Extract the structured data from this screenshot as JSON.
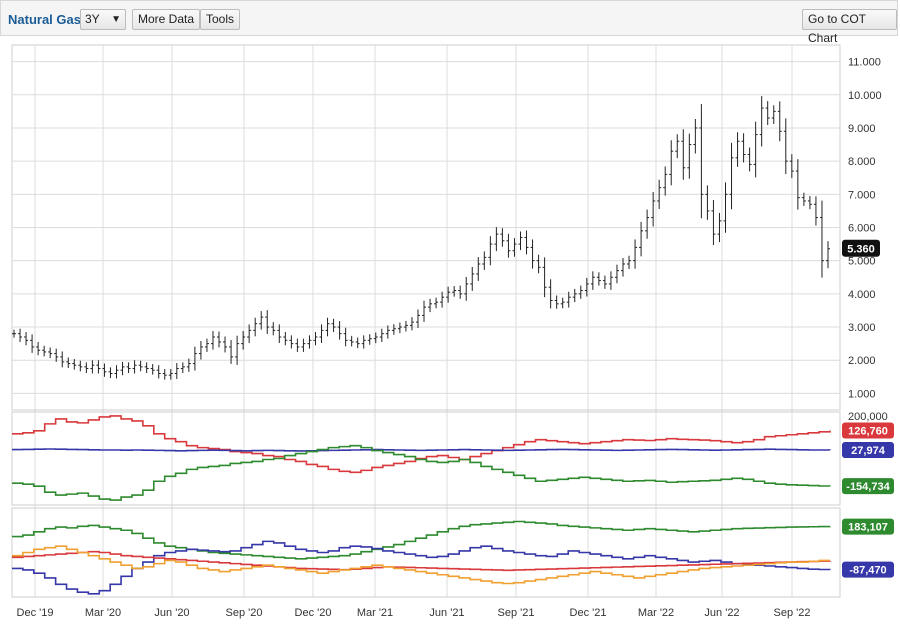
{
  "toolbar": {
    "title": "Natural Gas",
    "range_select": "3Y",
    "more_data": "More Data",
    "tools": "Tools",
    "cot_chart": "Go to COT Chart"
  },
  "colors": {
    "price": "#222222",
    "red": "#d9393c",
    "blue": "#3637a8",
    "green": "#2e8a2e",
    "orange": "#f0a030",
    "grid": "#dcdcdc"
  },
  "chart_data": [
    {
      "type": "ohlc",
      "ylim": [
        0.5,
        11.5
      ],
      "yticks": [
        "1.000",
        "2.000",
        "3.000",
        "4.000",
        "5.000",
        "6.000",
        "7.000",
        "8.000",
        "9.000",
        "10.000",
        "11.000"
      ],
      "last_value_label": "5.360",
      "x_tick_labels": [
        "Dec '19",
        "Mar '20",
        "Jun '20",
        "Sep '20",
        "Dec '20",
        "Mar '21",
        "Jun '21",
        "Sep '21",
        "Dec '21",
        "Mar '22",
        "Jun '22",
        "Sep '22"
      ],
      "weekly_closes": [
        2.8,
        2.7,
        2.6,
        2.4,
        2.3,
        2.25,
        2.2,
        2.1,
        1.95,
        1.9,
        1.85,
        1.8,
        1.75,
        1.85,
        1.75,
        1.65,
        1.6,
        1.7,
        1.8,
        1.75,
        1.85,
        1.8,
        1.75,
        1.7,
        1.6,
        1.55,
        1.6,
        1.75,
        1.8,
        1.9,
        2.2,
        2.4,
        2.5,
        2.7,
        2.55,
        2.4,
        2.1,
        2.5,
        2.7,
        2.9,
        3.1,
        3.3,
        3.0,
        2.9,
        2.7,
        2.6,
        2.5,
        2.4,
        2.5,
        2.6,
        2.7,
        2.9,
        3.1,
        3.0,
        2.8,
        2.6,
        2.55,
        2.5,
        2.6,
        2.65,
        2.7,
        2.8,
        2.9,
        2.95,
        3.0,
        3.05,
        3.15,
        3.35,
        3.6,
        3.7,
        3.75,
        3.9,
        4.05,
        4.1,
        4.0,
        4.3,
        4.6,
        4.9,
        5.1,
        5.5,
        5.8,
        5.6,
        5.3,
        5.5,
        5.7,
        5.4,
        5.0,
        4.8,
        4.2,
        3.8,
        3.7,
        3.75,
        3.9,
        4.0,
        4.1,
        4.3,
        4.5,
        4.4,
        4.3,
        4.5,
        4.7,
        4.9,
        5.0,
        5.4,
        5.9,
        6.3,
        6.8,
        7.2,
        7.6,
        8.3,
        8.6,
        7.8,
        8.5,
        9.0,
        7.0,
        6.5,
        5.8,
        6.2,
        7.0,
        8.1,
        8.6,
        8.2,
        7.9,
        8.8,
        9.6,
        9.3,
        9.5,
        8.9,
        8.0,
        7.7,
        6.9,
        6.8,
        6.7,
        6.3,
        5.0,
        5.36
      ],
      "series_last_values": []
    },
    {
      "type": "line",
      "ylim": [
        -250000,
        220000
      ],
      "yticks": [
        "200,000"
      ],
      "last_value_labels": [
        "126,760",
        "27,974",
        "-154,734"
      ],
      "series": [
        {
          "color": "red",
          "values": [
            110000,
            115000,
            125000,
            160000,
            185000,
            170000,
            165000,
            180000,
            195000,
            200000,
            185000,
            175000,
            150000,
            110000,
            85000,
            70000,
            50000,
            40000,
            35000,
            30000,
            20000,
            15000,
            10000,
            0,
            -5000,
            -20000,
            -30000,
            -45000,
            -55000,
            -70000,
            -80000,
            -85000,
            -75000,
            -60000,
            -50000,
            -40000,
            -30000,
            -15000,
            -5000,
            0,
            -10000,
            -20000,
            -5000,
            10000,
            25000,
            40000,
            55000,
            70000,
            80000,
            75000,
            70000,
            65000,
            60000,
            65000,
            70000,
            75000,
            80000,
            78000,
            76000,
            80000,
            85000,
            82000,
            80000,
            78000,
            75000,
            70000,
            65000,
            70000,
            80000,
            95000,
            100000,
            105000,
            110000,
            115000,
            120000,
            126760
          ]
        },
        {
          "color": "blue",
          "values": [
            30000,
            31000,
            32000,
            33000,
            32000,
            31000,
            30000,
            29000,
            28000,
            28000,
            27000,
            28000,
            27000,
            26000,
            25000,
            24000,
            25000,
            26000,
            27000,
            26000,
            25000,
            24000,
            25000,
            26000,
            25000,
            24000,
            23000,
            24000,
            25000,
            26000,
            27000,
            28000,
            29000,
            30000,
            29000,
            28000,
            27000,
            26000,
            27000,
            28000,
            29000,
            30000,
            29000,
            28000,
            27000,
            26000,
            27000,
            28000,
            29000,
            30000,
            31000,
            30000,
            29000,
            28000,
            27000,
            26000,
            27000,
            28000,
            29000,
            30000,
            31000,
            30000,
            29000,
            28000,
            27000,
            28000,
            29000,
            30000,
            31000,
            32000,
            31000,
            30000,
            29000,
            28000,
            28000,
            27974
          ]
        },
        {
          "color": "green",
          "values": [
            -140000,
            -145000,
            -155000,
            -185000,
            -200000,
            -195000,
            -190000,
            -205000,
            -220000,
            -225000,
            -210000,
            -200000,
            -175000,
            -130000,
            -105000,
            -90000,
            -70000,
            -60000,
            -55000,
            -50000,
            -40000,
            -35000,
            -30000,
            -20000,
            -15000,
            0,
            10000,
            20000,
            30000,
            40000,
            45000,
            50000,
            40000,
            25000,
            15000,
            5000,
            -5000,
            -20000,
            -30000,
            -35000,
            -30000,
            -20000,
            -35000,
            -55000,
            -70000,
            -85000,
            -100000,
            -115000,
            -130000,
            -125000,
            -120000,
            -115000,
            -110000,
            -115000,
            -120000,
            -125000,
            -130000,
            -128000,
            -126000,
            -130000,
            -135000,
            -132000,
            -130000,
            -128000,
            -125000,
            -120000,
            -115000,
            -120000,
            -130000,
            -140000,
            -145000,
            -148000,
            -150000,
            -152000,
            -154000,
            -154734
          ]
        }
      ]
    },
    {
      "type": "line",
      "ylim": [
        -260000,
        300000
      ],
      "last_value_labels": [
        "183,107",
        "-87,470"
      ],
      "series": [
        {
          "color": "green",
          "values": [
            120000,
            130000,
            150000,
            170000,
            180000,
            175000,
            185000,
            190000,
            180000,
            170000,
            160000,
            140000,
            110000,
            80000,
            60000,
            50000,
            40000,
            30000,
            20000,
            15000,
            10000,
            5000,
            0,
            -5000,
            -10000,
            -15000,
            -20000,
            -15000,
            -10000,
            -5000,
            0,
            10000,
            25000,
            40000,
            55000,
            70000,
            90000,
            110000,
            130000,
            150000,
            170000,
            185000,
            195000,
            200000,
            205000,
            210000,
            215000,
            210000,
            205000,
            200000,
            190000,
            185000,
            180000,
            175000,
            170000,
            165000,
            160000,
            165000,
            170000,
            165000,
            160000,
            155000,
            150000,
            155000,
            160000,
            165000,
            170000,
            172000,
            174000,
            176000,
            178000,
            180000,
            181000,
            182000,
            183000,
            183107
          ]
        },
        {
          "color": "blue",
          "values": [
            -80000,
            -90000,
            -110000,
            -140000,
            -180000,
            -210000,
            -230000,
            -240000,
            -220000,
            -180000,
            -130000,
            -80000,
            -40000,
            0,
            20000,
            30000,
            40000,
            35000,
            30000,
            25000,
            30000,
            50000,
            70000,
            90000,
            80000,
            60000,
            40000,
            30000,
            20000,
            30000,
            50000,
            60000,
            55000,
            45000,
            30000,
            20000,
            10000,
            0,
            -10000,
            -5000,
            10000,
            30000,
            50000,
            60000,
            45000,
            30000,
            20000,
            10000,
            0,
            -5000,
            10000,
            30000,
            20000,
            10000,
            0,
            -10000,
            -20000,
            -10000,
            0,
            -10000,
            -20000,
            -30000,
            -40000,
            -35000,
            -30000,
            -40000,
            -50000,
            -55000,
            -60000,
            -65000,
            -70000,
            -75000,
            -80000,
            -85000,
            -87000,
            -87470
          ]
        },
        {
          "color": "red",
          "values": [
            -10000,
            -5000,
            0,
            5000,
            10000,
            15000,
            20000,
            25000,
            20000,
            10000,
            0,
            -5000,
            -10000,
            -15000,
            -20000,
            -25000,
            -30000,
            -35000,
            -40000,
            -45000,
            -50000,
            -55000,
            -60000,
            -65000,
            -70000,
            -75000,
            -80000,
            -82000,
            -84000,
            -86000,
            -88000,
            -85000,
            -80000,
            -75000,
            -70000,
            -72000,
            -74000,
            -76000,
            -78000,
            -80000,
            -82000,
            -84000,
            -86000,
            -88000,
            -90000,
            -92000,
            -90000,
            -88000,
            -86000,
            -84000,
            -82000,
            -80000,
            -78000,
            -76000,
            -74000,
            -72000,
            -70000,
            -68000,
            -66000,
            -64000,
            -62000,
            -60000,
            -58000,
            -56000,
            -54000,
            -52000,
            -50000,
            -48000,
            -46000,
            -44000,
            -42000,
            -40000,
            -38000,
            -36000,
            -34000,
            -32000
          ]
        },
        {
          "color": "orange",
          "values": [
            0,
            20000,
            40000,
            50000,
            60000,
            40000,
            20000,
            0,
            -20000,
            -40000,
            -60000,
            -80000,
            -70000,
            -50000,
            -30000,
            -40000,
            -60000,
            -80000,
            -90000,
            -100000,
            -90000,
            -80000,
            -70000,
            -60000,
            -70000,
            -80000,
            -90000,
            -100000,
            -110000,
            -100000,
            -90000,
            -80000,
            -70000,
            -60000,
            -70000,
            -80000,
            -90000,
            -100000,
            -110000,
            -120000,
            -130000,
            -140000,
            -150000,
            -160000,
            -170000,
            -175000,
            -170000,
            -160000,
            -150000,
            -140000,
            -130000,
            -120000,
            -110000,
            -100000,
            -110000,
            -120000,
            -130000,
            -140000,
            -130000,
            -120000,
            -110000,
            -100000,
            -90000,
            -80000,
            -75000,
            -70000,
            -65000,
            -60000,
            -55000,
            -50000,
            -45000,
            -40000,
            -40000,
            -35000,
            -30000,
            -30000
          ]
        }
      ]
    }
  ]
}
